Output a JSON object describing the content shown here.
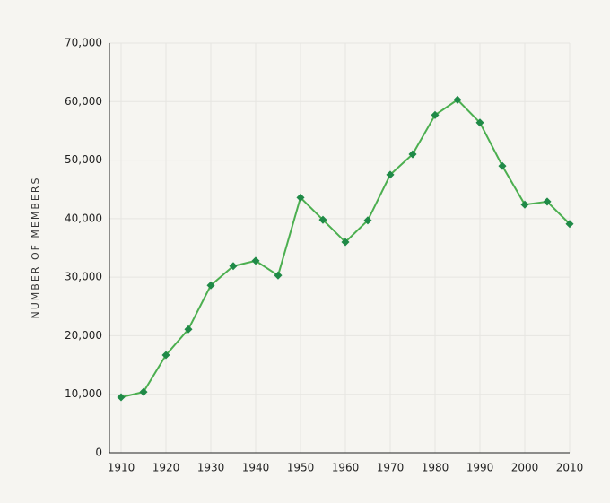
{
  "chart_data": {
    "type": "line",
    "y_label": "NUMBER OF MEMBERS",
    "x": [
      1910,
      1915,
      1920,
      1925,
      1930,
      1935,
      1940,
      1945,
      1950,
      1955,
      1960,
      1965,
      1970,
      1975,
      1980,
      1985,
      1990,
      1995,
      2000,
      2005,
      2010
    ],
    "series": [
      {
        "color": "#4caf50",
        "marker_color": "#1f8a47",
        "values": [
          9500,
          10400,
          16700,
          21100,
          28600,
          31900,
          32800,
          30300,
          43600,
          39800,
          36000,
          39700,
          47500,
          51000,
          57700,
          60300,
          56400,
          49000,
          42400,
          42900,
          39100
        ]
      }
    ],
    "xlim": [
      1907.4,
      2010
    ],
    "xticks": [
      1910,
      1920,
      1930,
      1940,
      1950,
      1960,
      1970,
      1980,
      1990,
      2000,
      2010
    ],
    "ylim": [
      0,
      70000
    ],
    "yticks": [
      0,
      {
        "value": 10000,
        "label": "10,000"
      },
      {
        "value": 20000,
        "label": "20,000"
      },
      {
        "value": 30000,
        "label": "30,000"
      },
      {
        "value": 40000,
        "label": "40,000"
      },
      {
        "value": 50000,
        "label": "50,000"
      },
      {
        "value": 60000,
        "label": "60,000"
      },
      {
        "value": 70000,
        "label": "70,000"
      }
    ],
    "grid": true
  }
}
